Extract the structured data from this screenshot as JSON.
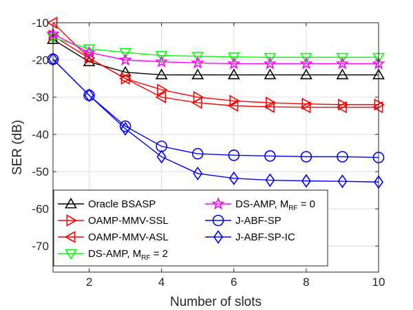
{
  "chart_data": {
    "type": "line",
    "title": "",
    "xlabel": "Number of slots",
    "ylabel": "SER (dB)",
    "xlim": [
      1,
      10
    ],
    "ylim": [
      -77,
      -10
    ],
    "xticks": [
      2,
      4,
      6,
      8,
      10
    ],
    "yticks": [
      -10,
      -20,
      -30,
      -40,
      -50,
      -60,
      -70
    ],
    "grid": true,
    "legend_position": "bottom-left inside, two columns",
    "x": [
      1,
      2,
      3,
      4,
      5,
      6,
      7,
      8,
      9,
      10
    ],
    "series": [
      {
        "name": "Oracle BSASP",
        "label_main": "Oracle BSASP",
        "label_sub": "",
        "label_tail": "",
        "color": "#000000",
        "marker": "triangle-up",
        "values": [
          -14.5,
          -20.5,
          -23.3,
          -24.0,
          -24.0,
          -24.0,
          -24.0,
          -24.0,
          -24.0,
          -24.0
        ]
      },
      {
        "name": "OAMP-MMV-SSL",
        "label_main": "OAMP-MMV-SSL",
        "label_sub": "",
        "label_tail": "",
        "color": "#ff0000",
        "marker": "triangle-right",
        "values": [
          -13.5,
          -19.5,
          -25.0,
          -28.0,
          -30.0,
          -31.0,
          -31.5,
          -31.8,
          -32.0,
          -32.0
        ]
      },
      {
        "name": "OAMP-MMV-ASL",
        "label_main": "OAMP-MMV-ASL",
        "label_sub": "",
        "label_tail": "",
        "color": "#ff0000",
        "marker": "triangle-left",
        "values": [
          -10.0,
          -19.5,
          -25.0,
          -30.0,
          -31.5,
          -32.3,
          -32.6,
          -32.7,
          -32.7,
          -32.7
        ]
      },
      {
        "name": "DS-AMP, M_RF = 2",
        "label_main": "DS-AMP, M",
        "label_sub": "RF",
        "label_tail": " = 2",
        "color": "#00ff00",
        "marker": "triangle-down",
        "values": [
          -14.0,
          -17.0,
          -18.0,
          -18.8,
          -19.0,
          -19.2,
          -19.3,
          -19.3,
          -19.3,
          -19.3
        ]
      },
      {
        "name": "DS-AMP, M_RF = 0",
        "label_main": "DS-AMP, M",
        "label_sub": "RF",
        "label_tail": " = 0",
        "color": "#ff00ff",
        "marker": "star",
        "values": [
          -13.0,
          -18.0,
          -20.0,
          -20.5,
          -20.8,
          -21.0,
          -21.0,
          -21.0,
          -21.0,
          -21.0
        ]
      },
      {
        "name": "J-ABF-SP",
        "label_main": "J-ABF-SP",
        "label_sub": "",
        "label_tail": "",
        "color": "#0000ff",
        "marker": "circle",
        "values": [
          -19.8,
          -29.5,
          -37.8,
          -43.2,
          -45.2,
          -45.6,
          -45.8,
          -46.0,
          -46.0,
          -46.2
        ]
      },
      {
        "name": "J-ABF-SP-IC",
        "label_main": "J-ABF-SP-IC",
        "label_sub": "",
        "label_tail": "",
        "color": "#0000ff",
        "marker": "diamond",
        "values": [
          -19.8,
          -29.5,
          -38.5,
          -46.0,
          -50.5,
          -51.8,
          -52.3,
          -52.5,
          -52.6,
          -52.8
        ]
      }
    ]
  }
}
